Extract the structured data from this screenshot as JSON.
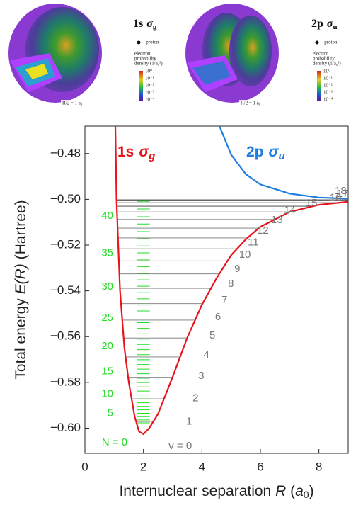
{
  "chart_data": {
    "type": "line",
    "ylabel": [
      {
        "text": "Total energy "
      },
      {
        "text": "E(R)",
        "italic": true
      },
      {
        "text": " (Hartree)"
      }
    ],
    "xlabel": [
      {
        "text": "Internuclear separation "
      },
      {
        "text": "R",
        "italic": true
      },
      {
        "text": " ("
      },
      {
        "text": "a",
        "italic": true
      },
      {
        "text": "0",
        "sub": true
      },
      {
        "text": ")"
      }
    ],
    "xlim": [
      0,
      9
    ],
    "ylim": [
      -0.611,
      -0.468
    ],
    "xticks": [
      0,
      2,
      4,
      6,
      8
    ],
    "yticks": [
      {
        "value": -0.48,
        "label": "−0.48"
      },
      {
        "value": -0.5,
        "label": "−0.50"
      },
      {
        "value": -0.52,
        "label": "−0.52"
      },
      {
        "value": -0.54,
        "label": "−0.54"
      },
      {
        "value": -0.56,
        "label": "−0.56"
      },
      {
        "value": -0.58,
        "label": "−0.58"
      },
      {
        "value": -0.6,
        "label": "−0.60"
      }
    ],
    "series": [
      {
        "label": {
          "text": "1s",
          "symbol": "σ",
          "sub": "g"
        },
        "color": "#e8141c",
        "x": [
          1.04,
          1.08,
          1.2,
          1.35,
          1.5,
          1.7,
          1.85,
          2.0,
          2.2,
          2.5,
          3.0,
          3.5,
          4.0,
          4.5,
          5.0,
          5.5,
          6.0,
          7.0,
          8.0,
          9.0
        ],
        "values": [
          -0.468,
          -0.5,
          -0.54,
          -0.565,
          -0.58,
          -0.595,
          -0.6015,
          -0.6026,
          -0.6,
          -0.5938,
          -0.5776,
          -0.5604,
          -0.5461,
          -0.5345,
          -0.5244,
          -0.5175,
          -0.512,
          -0.5055,
          -0.5024,
          -0.5011
        ]
      },
      {
        "label": {
          "text": "2p",
          "symbol": "σ",
          "sub": "u"
        },
        "color": "#1e7fe0",
        "x": [
          4.6,
          5.0,
          5.5,
          6.0,
          7.0,
          8.0,
          9.0
        ],
        "values": [
          -0.468,
          -0.4805,
          -0.489,
          -0.4935,
          -0.4975,
          -0.4992,
          -0.4997
        ]
      }
    ],
    "vibrational_levels": {
      "color": "#777777",
      "labels": [
        "v = 0",
        "1",
        "2",
        "3",
        "4",
        "5",
        "6",
        "7",
        "8",
        "9",
        "10",
        "11",
        "12",
        "13",
        "14",
        "15",
        "16",
        "17",
        "18"
      ],
      "values": [
        -0.5971,
        -0.5872,
        -0.5778,
        -0.5689,
        -0.5606,
        -0.5528,
        -0.5456,
        -0.5389,
        -0.5326,
        -0.5269,
        -0.5216,
        -0.5169,
        -0.5126,
        -0.5088,
        -0.5055,
        -0.503,
        -0.5015,
        -0.5006,
        -0.5002
      ]
    },
    "rotational_levels": {
      "color": "#22dd22",
      "x": 2,
      "labels": [
        "N = 0",
        "5",
        "10",
        "15",
        "20",
        "25",
        "30",
        "35",
        "40"
      ],
      "values": [
        -0.5977,
        -0.5964,
        -0.595,
        -0.5935,
        -0.592,
        -0.5905,
        -0.5889,
        -0.5872,
        -0.5855,
        -0.5838,
        -0.582,
        -0.5801,
        -0.5782,
        -0.5762,
        -0.5742,
        -0.5722,
        -0.5701,
        -0.5679,
        -0.5657,
        -0.5634,
        -0.5611,
        -0.5588,
        -0.5564,
        -0.5539,
        -0.5514,
        -0.5488,
        -0.5462,
        -0.5435,
        -0.5408,
        -0.538,
        -0.5352,
        -0.5324,
        -0.5294,
        -0.5265,
        -0.5234,
        -0.5204,
        -0.5172,
        -0.5141,
        -0.5108,
        -0.5076,
        -0.5042,
        -0.5009
      ]
    }
  },
  "insets": [
    {
      "title": "1s",
      "symbol": "σ",
      "sub": "g",
      "legend": "– proton",
      "density_label": [
        "electron",
        "probability",
        "density (1/a₀³)"
      ],
      "colorbar": [
        "10⁰",
        "10⁻¹",
        "10⁻²",
        "10⁻³",
        "10⁻⁴"
      ],
      "scale": "R/2 = 1 a₀"
    },
    {
      "title": "2p",
      "symbol": "σ",
      "sub": "u",
      "legend": "– proton",
      "density_label": [
        "electron",
        "probability",
        "density (1/a₀³)"
      ],
      "colorbar": [
        "10⁰",
        "10⁻¹",
        "10⁻²",
        "10⁻³",
        "10⁻⁴"
      ],
      "scale": "R/2 = 1 a₀"
    }
  ]
}
